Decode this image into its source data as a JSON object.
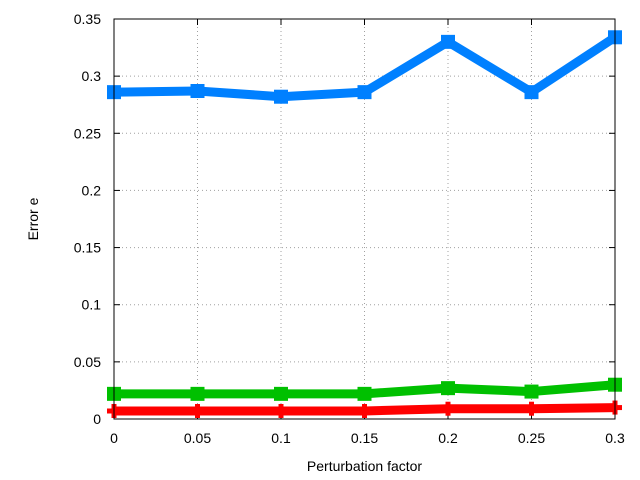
{
  "chart_data": {
    "type": "line",
    "title": "",
    "xlabel": "Perturbation factor",
    "ylabel": "Error e",
    "xlim": [
      0,
      0.3
    ],
    "ylim": [
      0,
      0.35
    ],
    "grid": true,
    "x": [
      0,
      0.05,
      0.1,
      0.15,
      0.2,
      0.25,
      0.3
    ],
    "x_tick_labels": [
      "0",
      "0.05",
      "0.1",
      "0.15",
      "0.2",
      "0.25",
      "0.3"
    ],
    "y_ticks": [
      0,
      0.05,
      0.1,
      0.15,
      0.2,
      0.25,
      0.3,
      0.35
    ],
    "y_tick_labels": [
      "0",
      "0.05",
      "0.1",
      "0.15",
      "0.2",
      "0.25",
      "0.3",
      "0.35"
    ],
    "series": [
      {
        "color": "#0080ff",
        "marker": "square",
        "values": [
          0.286,
          0.287,
          0.282,
          0.286,
          0.33,
          0.286,
          0.334
        ]
      },
      {
        "color": "#00c000",
        "marker": "square",
        "values": [
          0.022,
          0.022,
          0.022,
          0.022,
          0.027,
          0.024,
          0.03
        ]
      },
      {
        "color": "#ff0000",
        "marker": "plus",
        "values": [
          0.007,
          0.007,
          0.007,
          0.007,
          0.009,
          0.009,
          0.01
        ]
      }
    ]
  }
}
